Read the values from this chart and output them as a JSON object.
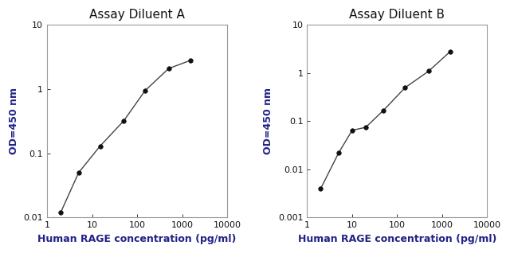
{
  "chart_a": {
    "title": "Assay Diluent A",
    "x": [
      2,
      5,
      15,
      50,
      150,
      500,
      1500
    ],
    "y": [
      0.012,
      0.05,
      0.13,
      0.32,
      0.95,
      2.1,
      2.8
    ],
    "xlim": [
      1,
      10000
    ],
    "ylim": [
      0.01,
      10
    ],
    "xlabel": "Human RAGE concentration (pg/ml)",
    "ylabel": "OD=450 nm",
    "xticks": [
      1,
      10,
      100,
      1000,
      10000
    ],
    "yticks": [
      0.01,
      0.1,
      1,
      10
    ]
  },
  "chart_b": {
    "title": "Assay Diluent B",
    "x": [
      2,
      5,
      10,
      20,
      50,
      150,
      500,
      1500
    ],
    "y": [
      0.004,
      0.022,
      0.065,
      0.075,
      0.17,
      0.5,
      1.1,
      2.8
    ],
    "xlim": [
      1,
      10000
    ],
    "ylim": [
      0.001,
      10
    ],
    "xlabel": "Human RAGE concentration (pg/ml)",
    "ylabel": "OD=450 nm",
    "xticks": [
      1,
      10,
      100,
      1000,
      10000
    ],
    "yticks": [
      0.001,
      0.01,
      0.1,
      1,
      10
    ]
  },
  "line_color": "#444444",
  "marker_color": "#111111",
  "marker_size": 4,
  "line_width": 1.0,
  "title_fontsize": 11,
  "label_fontsize": 9,
  "tick_fontsize": 8,
  "bg_color": "#ffffff",
  "spine_color": "#999999",
  "text_color": "#111111",
  "xlabel_color": "#222288",
  "ylabel_color": "#222288"
}
